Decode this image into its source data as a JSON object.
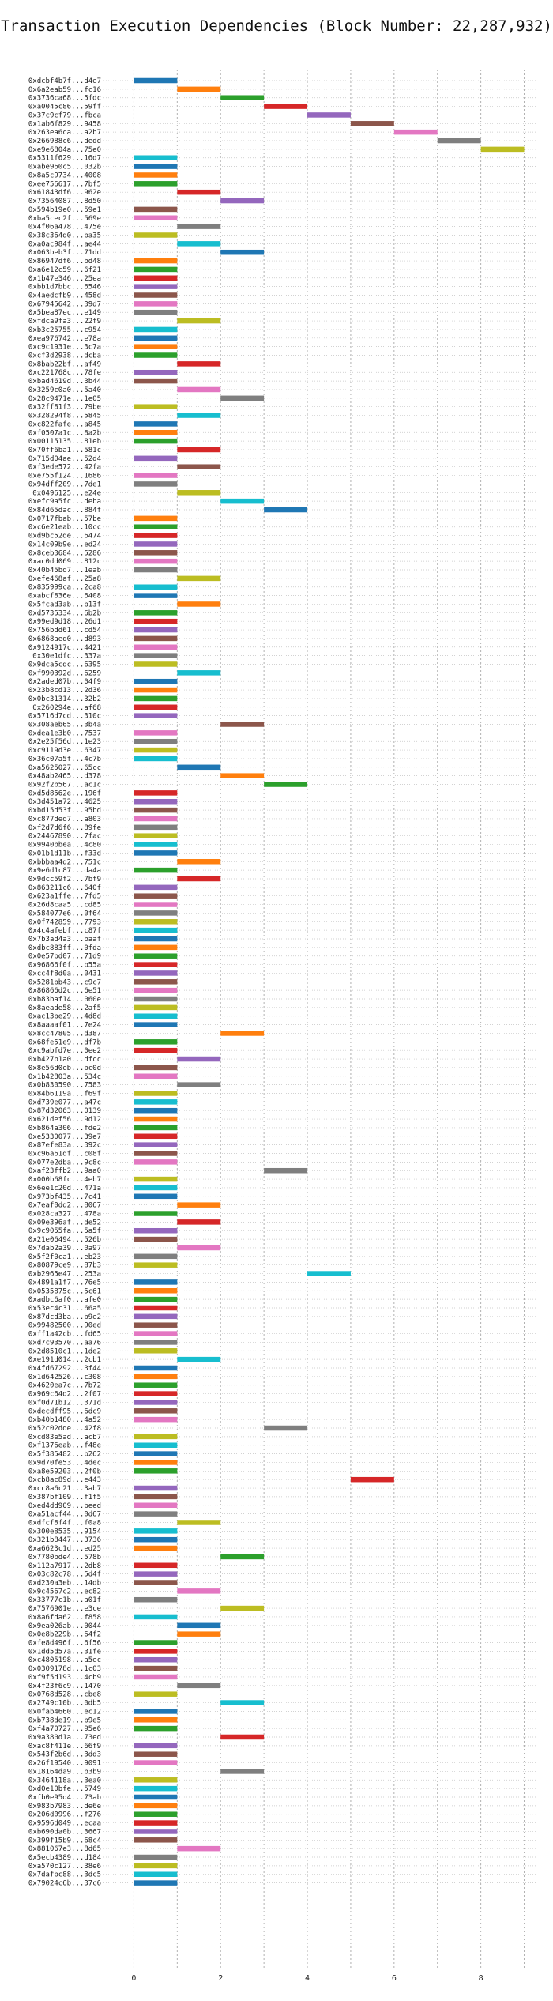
{
  "chart_data": {
    "type": "bar",
    "orientation": "horizontal",
    "title": "Transaction Execution Dependencies (Block Number: 22,287,932)",
    "xlabel": "",
    "ylabel": "",
    "xlim": [
      -0.7,
      9.3
    ],
    "xticks": [
      0,
      2,
      4,
      6,
      8
    ],
    "grid": true,
    "colors": [
      "#1f77b4",
      "#ff7f0e",
      "#2ca02c",
      "#d62728",
      "#9467bd",
      "#8c564b",
      "#e377c2",
      "#7f7f7f",
      "#bcbd22",
      "#17becf"
    ],
    "transactions": [
      {
        "label": "0xdcbf4b7f...d4e7",
        "start": 0,
        "end": 1
      },
      {
        "label": "0x6a2eab59...fc16",
        "start": 1,
        "end": 2
      },
      {
        "label": "0x3736ca68...5fdc",
        "start": 2,
        "end": 3
      },
      {
        "label": "0xa0045c86...59ff",
        "start": 3,
        "end": 4
      },
      {
        "label": "0x37c9cf79...fbca",
        "start": 4,
        "end": 5
      },
      {
        "label": "0x1ab6f829...9458",
        "start": 5,
        "end": 6
      },
      {
        "label": "0x263ea6ca...a2b7",
        "start": 6,
        "end": 7
      },
      {
        "label": "0x266988c6...dedd",
        "start": 7,
        "end": 8
      },
      {
        "label": "0xe9e6804a...75e0",
        "start": 8,
        "end": 9
      },
      {
        "label": "0x5311f629...16d7",
        "start": 0,
        "end": 1
      },
      {
        "label": "0xabe960c5...032b",
        "start": 0,
        "end": 1
      },
      {
        "label": "0x8a5c9734...4008",
        "start": 0,
        "end": 1
      },
      {
        "label": "0xee756617...7bf5",
        "start": 0,
        "end": 1
      },
      {
        "label": "0x61843df6...962e",
        "start": 1,
        "end": 2
      },
      {
        "label": "0x73564087...8d50",
        "start": 2,
        "end": 3
      },
      {
        "label": "0x594b19e0...59e1",
        "start": 0,
        "end": 1
      },
      {
        "label": "0xba5cec2f...569e",
        "start": 0,
        "end": 1
      },
      {
        "label": "0x4f06a478...475e",
        "start": 1,
        "end": 2
      },
      {
        "label": "0x38c364d0...ba35",
        "start": 0,
        "end": 1
      },
      {
        "label": "0xa0ac984f...ae44",
        "start": 1,
        "end": 2
      },
      {
        "label": "0x063beb3f...71dd",
        "start": 2,
        "end": 3
      },
      {
        "label": "0x86947df6...bd48",
        "start": 0,
        "end": 1
      },
      {
        "label": "0xa6e12c59...6f21",
        "start": 0,
        "end": 1
      },
      {
        "label": "0x1b47e346...25ea",
        "start": 0,
        "end": 1
      },
      {
        "label": "0xbb1d7bbc...6546",
        "start": 0,
        "end": 1
      },
      {
        "label": "0x4aedcfb9...458d",
        "start": 0,
        "end": 1
      },
      {
        "label": "0x67945642...39d7",
        "start": 0,
        "end": 1
      },
      {
        "label": "0x5bea87ec...e149",
        "start": 0,
        "end": 1
      },
      {
        "label": "0xfdca9fa3...22f9",
        "start": 1,
        "end": 2
      },
      {
        "label": "0xb3c25755...c954",
        "start": 0,
        "end": 1
      },
      {
        "label": "0xea976742...e78a",
        "start": 0,
        "end": 1
      },
      {
        "label": "0xc9c1931e...3c7a",
        "start": 0,
        "end": 1
      },
      {
        "label": "0xcf3d2938...dcba",
        "start": 0,
        "end": 1
      },
      {
        "label": "0x8bab22bf...af49",
        "start": 1,
        "end": 2
      },
      {
        "label": "0xc221768c...78fe",
        "start": 0,
        "end": 1
      },
      {
        "label": "0xbad4619d...3b44",
        "start": 0,
        "end": 1
      },
      {
        "label": "0x3259c0a0...5a40",
        "start": 1,
        "end": 2
      },
      {
        "label": "0x28c9471e...1e05",
        "start": 2,
        "end": 3
      },
      {
        "label": "0x32ff81f3...79be",
        "start": 0,
        "end": 1
      },
      {
        "label": "0x328294f8...5845",
        "start": 1,
        "end": 2
      },
      {
        "label": "0xc822fafe...a845",
        "start": 0,
        "end": 1
      },
      {
        "label": "0xf0507a1c...8a2b",
        "start": 0,
        "end": 1
      },
      {
        "label": "0x00115135...81eb",
        "start": 0,
        "end": 1
      },
      {
        "label": "0x70ff6ba1...581c",
        "start": 1,
        "end": 2
      },
      {
        "label": "0x715d04ae...52d4",
        "start": 0,
        "end": 1
      },
      {
        "label": "0xf3ede572...42fa",
        "start": 1,
        "end": 2
      },
      {
        "label": "0xe755f124...1686",
        "start": 0,
        "end": 1
      },
      {
        "label": "0x94dff209...7de1",
        "start": 0,
        "end": 1
      },
      {
        "label": "0x0496125...e24e",
        "start": 1,
        "end": 2
      },
      {
        "label": "0xefc9a5fc...deba",
        "start": 2,
        "end": 3
      },
      {
        "label": "0x84d65dac...884f",
        "start": 3,
        "end": 4
      },
      {
        "label": "0x0717fbab...57be",
        "start": 0,
        "end": 1
      },
      {
        "label": "0xc6e21eab...10cc",
        "start": 0,
        "end": 1
      },
      {
        "label": "0xd9bc52de...6474",
        "start": 0,
        "end": 1
      },
      {
        "label": "0x14c09b9e...ed24",
        "start": 0,
        "end": 1
      },
      {
        "label": "0x8ceb3684...5286",
        "start": 0,
        "end": 1
      },
      {
        "label": "0xac0dd069...812c",
        "start": 0,
        "end": 1
      },
      {
        "label": "0x40b45bd7...1eab",
        "start": 0,
        "end": 1
      },
      {
        "label": "0xefe468af...25a8",
        "start": 1,
        "end": 2
      },
      {
        "label": "0x835999ca...2ca8",
        "start": 0,
        "end": 1
      },
      {
        "label": "0xabcf836e...6408",
        "start": 0,
        "end": 1
      },
      {
        "label": "0x5fcad3ab...b13f",
        "start": 1,
        "end": 2
      },
      {
        "label": "0xd5735334...6b2b",
        "start": 0,
        "end": 1
      },
      {
        "label": "0x99ed9d18...26d1",
        "start": 0,
        "end": 1
      },
      {
        "label": "0x756bdd61...cd54",
        "start": 0,
        "end": 1
      },
      {
        "label": "0x6868aed0...d893",
        "start": 0,
        "end": 1
      },
      {
        "label": "0x9124917c...4421",
        "start": 0,
        "end": 1
      },
      {
        "label": "0x30e1dfc...337a",
        "start": 0,
        "end": 1
      },
      {
        "label": "0x9dca5cdc...6395",
        "start": 0,
        "end": 1
      },
      {
        "label": "0xf990392d...6259",
        "start": 1,
        "end": 2
      },
      {
        "label": "0x2aded07b...04f9",
        "start": 0,
        "end": 1
      },
      {
        "label": "0x23b8cd13...2d36",
        "start": 0,
        "end": 1
      },
      {
        "label": "0x0bc31314...32b2",
        "start": 0,
        "end": 1
      },
      {
        "label": "0x260294e...af68",
        "start": 0,
        "end": 1
      },
      {
        "label": "0x5716d7cd...310c",
        "start": 0,
        "end": 1
      },
      {
        "label": "0x308aeb65...3b4a",
        "start": 2,
        "end": 3
      },
      {
        "label": "0xdea1e3b0...7537",
        "start": 0,
        "end": 1
      },
      {
        "label": "0x2e25f56d...1e23",
        "start": 0,
        "end": 1
      },
      {
        "label": "0xc9119d3e...6347",
        "start": 0,
        "end": 1
      },
      {
        "label": "0x36c07a5f...4c7b",
        "start": 0,
        "end": 1
      },
      {
        "label": "0xa5625027...65cc",
        "start": 1,
        "end": 2
      },
      {
        "label": "0x48ab2465...d378",
        "start": 2,
        "end": 3
      },
      {
        "label": "0x92f2b567...ac1c",
        "start": 3,
        "end": 4
      },
      {
        "label": "0xd5d8562e...196f",
        "start": 0,
        "end": 1
      },
      {
        "label": "0x3d451a72...4625",
        "start": 0,
        "end": 1
      },
      {
        "label": "0xbd15d53f...95bd",
        "start": 0,
        "end": 1
      },
      {
        "label": "0xc877ded7...a803",
        "start": 0,
        "end": 1
      },
      {
        "label": "0xf2d7d6f6...89fe",
        "start": 0,
        "end": 1
      },
      {
        "label": "0x24467890...7fac",
        "start": 0,
        "end": 1
      },
      {
        "label": "0x9940bbea...4c80",
        "start": 0,
        "end": 1
      },
      {
        "label": "0x01b1d11b...f33d",
        "start": 0,
        "end": 1
      },
      {
        "label": "0xbbbaa4d2...751c",
        "start": 1,
        "end": 2
      },
      {
        "label": "0x9e6d1c87...da4a",
        "start": 0,
        "end": 1
      },
      {
        "label": "0x9dcc59f2...7bf9",
        "start": 1,
        "end": 2
      },
      {
        "label": "0x863211c6...640f",
        "start": 0,
        "end": 1
      },
      {
        "label": "0x623a1ffe...7fd5",
        "start": 0,
        "end": 1
      },
      {
        "label": "0x26d8caa5...cd85",
        "start": 0,
        "end": 1
      },
      {
        "label": "0x584077e6...0f64",
        "start": 0,
        "end": 1
      },
      {
        "label": "0x0f742859...7793",
        "start": 0,
        "end": 1
      },
      {
        "label": "0x4c4afebf...c87f",
        "start": 0,
        "end": 1
      },
      {
        "label": "0x7b3ad4a3...baaf",
        "start": 0,
        "end": 1
      },
      {
        "label": "0xdbc883ff...0fda",
        "start": 0,
        "end": 1
      },
      {
        "label": "0x0e57bd07...71d9",
        "start": 0,
        "end": 1
      },
      {
        "label": "0x96866f0f...b55a",
        "start": 0,
        "end": 1
      },
      {
        "label": "0xcc4f8d0a...0431",
        "start": 0,
        "end": 1
      },
      {
        "label": "0x5281bb43...c9c7",
        "start": 0,
        "end": 1
      },
      {
        "label": "0x86866d2c...6e51",
        "start": 0,
        "end": 1
      },
      {
        "label": "0xb83baf14...060e",
        "start": 0,
        "end": 1
      },
      {
        "label": "0x8aeade58...2af5",
        "start": 0,
        "end": 1
      },
      {
        "label": "0xac13be29...4d8d",
        "start": 0,
        "end": 1
      },
      {
        "label": "0x8aaaaf01...7e24",
        "start": 0,
        "end": 1
      },
      {
        "label": "0x8cc47805...d387",
        "start": 2,
        "end": 3
      },
      {
        "label": "0x68fe51e9...df7b",
        "start": 0,
        "end": 1
      },
      {
        "label": "0xc9abfd7e...0ee2",
        "start": 0,
        "end": 1
      },
      {
        "label": "0xb427b1a0...dfcc",
        "start": 1,
        "end": 2
      },
      {
        "label": "0x8e56d0eb...bc0d",
        "start": 0,
        "end": 1
      },
      {
        "label": "0x1b42803a...534c",
        "start": 0,
        "end": 1
      },
      {
        "label": "0x0b830590...7583",
        "start": 1,
        "end": 2
      },
      {
        "label": "0x84b6119a...f69f",
        "start": 0,
        "end": 1
      },
      {
        "label": "0xd739e077...a47c",
        "start": 0,
        "end": 1
      },
      {
        "label": "0x87d32063...0139",
        "start": 0,
        "end": 1
      },
      {
        "label": "0x621def56...9d12",
        "start": 0,
        "end": 1
      },
      {
        "label": "0xb864a306...fde2",
        "start": 0,
        "end": 1
      },
      {
        "label": "0xe5330077...39e7",
        "start": 0,
        "end": 1
      },
      {
        "label": "0x87efe83a...392c",
        "start": 0,
        "end": 1
      },
      {
        "label": "0xc96a61df...c08f",
        "start": 0,
        "end": 1
      },
      {
        "label": "0x077e2dba...9c8c",
        "start": 0,
        "end": 1
      },
      {
        "label": "0xaf23ffb2...9aa0",
        "start": 3,
        "end": 4
      },
      {
        "label": "0x000b68fc...4eb7",
        "start": 0,
        "end": 1
      },
      {
        "label": "0x6ee1c20d...471a",
        "start": 0,
        "end": 1
      },
      {
        "label": "0x973bf435...7c41",
        "start": 0,
        "end": 1
      },
      {
        "label": "0x7eaf0dd2...8067",
        "start": 1,
        "end": 2
      },
      {
        "label": "0x028ca327...478a",
        "start": 0,
        "end": 1
      },
      {
        "label": "0x09e396af...de52",
        "start": 1,
        "end": 2
      },
      {
        "label": "0x9c9055fa...5a5f",
        "start": 0,
        "end": 1
      },
      {
        "label": "0x21e06494...526b",
        "start": 0,
        "end": 1
      },
      {
        "label": "0x7dab2a39...0a97",
        "start": 1,
        "end": 2
      },
      {
        "label": "0x5f2f0ca1...eb23",
        "start": 0,
        "end": 1
      },
      {
        "label": "0x80879ce9...87b3",
        "start": 0,
        "end": 1
      },
      {
        "label": "0xb2965e47...253a",
        "start": 4,
        "end": 5
      },
      {
        "label": "0x4891a1f7...76e5",
        "start": 0,
        "end": 1
      },
      {
        "label": "0x0535875c...5c61",
        "start": 0,
        "end": 1
      },
      {
        "label": "0xadbc6af0...afe0",
        "start": 0,
        "end": 1
      },
      {
        "label": "0x53ec4c31...66a5",
        "start": 0,
        "end": 1
      },
      {
        "label": "0x87dcd3ba...b9e2",
        "start": 0,
        "end": 1
      },
      {
        "label": "0x99482500...90ed",
        "start": 0,
        "end": 1
      },
      {
        "label": "0xff1a42cb...fd65",
        "start": 0,
        "end": 1
      },
      {
        "label": "0xd7c93570...aa76",
        "start": 0,
        "end": 1
      },
      {
        "label": "0x2d8510c1...1de2",
        "start": 0,
        "end": 1
      },
      {
        "label": "0xe191d014...2cb1",
        "start": 1,
        "end": 2
      },
      {
        "label": "0x4fd67292...3f44",
        "start": 0,
        "end": 1
      },
      {
        "label": "0x1d642526...c308",
        "start": 0,
        "end": 1
      },
      {
        "label": "0x4620ea7c...7b72",
        "start": 0,
        "end": 1
      },
      {
        "label": "0x969c64d2...2f07",
        "start": 0,
        "end": 1
      },
      {
        "label": "0xf0d71b12...371d",
        "start": 0,
        "end": 1
      },
      {
        "label": "0xdecdff95...6dc9",
        "start": 0,
        "end": 1
      },
      {
        "label": "0xb40b1480...4a52",
        "start": 0,
        "end": 1
      },
      {
        "label": "0x52c02dde...42f8",
        "start": 3,
        "end": 4
      },
      {
        "label": "0xcd83e5ad...acb7",
        "start": 0,
        "end": 1
      },
      {
        "label": "0xf1376eab...f48e",
        "start": 0,
        "end": 1
      },
      {
        "label": "0x5f385482...b262",
        "start": 0,
        "end": 1
      },
      {
        "label": "0x9d70fe53...4dec",
        "start": 0,
        "end": 1
      },
      {
        "label": "0xa8e59203...2f0b",
        "start": 0,
        "end": 1
      },
      {
        "label": "0xcb8ac89d...e443",
        "start": 5,
        "end": 6
      },
      {
        "label": "0xcc8a6c21...3ab7",
        "start": 0,
        "end": 1
      },
      {
        "label": "0x387bf109...f1f5",
        "start": 0,
        "end": 1
      },
      {
        "label": "0xed4dd909...beed",
        "start": 0,
        "end": 1
      },
      {
        "label": "0xa51acf44...0d67",
        "start": 0,
        "end": 1
      },
      {
        "label": "0xdfcf8f4f...f0a8",
        "start": 1,
        "end": 2
      },
      {
        "label": "0x300e8535...9154",
        "start": 0,
        "end": 1
      },
      {
        "label": "0x321b8447...3736",
        "start": 0,
        "end": 1
      },
      {
        "label": "0xa6623c1d...ed25",
        "start": 0,
        "end": 1
      },
      {
        "label": "0x7780bde4...578b",
        "start": 2,
        "end": 3
      },
      {
        "label": "0x112a7917...2db8",
        "start": 0,
        "end": 1
      },
      {
        "label": "0x03c82c78...5d4f",
        "start": 0,
        "end": 1
      },
      {
        "label": "0xd230a3eb...14db",
        "start": 0,
        "end": 1
      },
      {
        "label": "0x9c4567c2...ec82",
        "start": 1,
        "end": 2
      },
      {
        "label": "0x33777c1b...a01f",
        "start": 0,
        "end": 1
      },
      {
        "label": "0x7576901e...e3ce",
        "start": 2,
        "end": 3
      },
      {
        "label": "0x8a6fda62...f858",
        "start": 0,
        "end": 1
      },
      {
        "label": "0x9ea026ab...0044",
        "start": 1,
        "end": 2
      },
      {
        "label": "0x0e8b229b...64f2",
        "start": 1,
        "end": 2
      },
      {
        "label": "0xfe8d496f...6f56",
        "start": 0,
        "end": 1
      },
      {
        "label": "0x1dd5d57a...31fe",
        "start": 0,
        "end": 1
      },
      {
        "label": "0xc4805198...a5ec",
        "start": 0,
        "end": 1
      },
      {
        "label": "0x0309178d...1c03",
        "start": 0,
        "end": 1
      },
      {
        "label": "0xf9f5d193...4cb9",
        "start": 0,
        "end": 1
      },
      {
        "label": "0x4f23f6c9...1470",
        "start": 1,
        "end": 2
      },
      {
        "label": "0x0768d528...cbe8",
        "start": 0,
        "end": 1
      },
      {
        "label": "0x2749c10b...0db5",
        "start": 2,
        "end": 3
      },
      {
        "label": "0x0fab4660...ec12",
        "start": 0,
        "end": 1
      },
      {
        "label": "0xb738de19...b9e5",
        "start": 0,
        "end": 1
      },
      {
        "label": "0xf4a70727...95e6",
        "start": 0,
        "end": 1
      },
      {
        "label": "0x9a380d1a...73ed",
        "start": 2,
        "end": 3
      },
      {
        "label": "0xac8f411e...66f9",
        "start": 0,
        "end": 1
      },
      {
        "label": "0x543f2b6d...3dd3",
        "start": 0,
        "end": 1
      },
      {
        "label": "0x26f19540...9091",
        "start": 0,
        "end": 1
      },
      {
        "label": "0x18164da9...b3b9",
        "start": 2,
        "end": 3
      },
      {
        "label": "0x3464118a...3ea0",
        "start": 0,
        "end": 1
      },
      {
        "label": "0xd0e10bfe...5749",
        "start": 0,
        "end": 1
      },
      {
        "label": "0xfb0e95d4...73ab",
        "start": 0,
        "end": 1
      },
      {
        "label": "0x983b7983...de6e",
        "start": 0,
        "end": 1
      },
      {
        "label": "0x206d0996...f276",
        "start": 0,
        "end": 1
      },
      {
        "label": "0x9596d049...ecaa",
        "start": 0,
        "end": 1
      },
      {
        "label": "0xb690da0b...3667",
        "start": 0,
        "end": 1
      },
      {
        "label": "0x399f15b9...68c4",
        "start": 0,
        "end": 1
      },
      {
        "label": "0x881067e3...8d65",
        "start": 1,
        "end": 2
      },
      {
        "label": "0x5ecb4389...d184",
        "start": 0,
        "end": 1
      },
      {
        "label": "0xa570c127...38e6",
        "start": 0,
        "end": 1
      },
      {
        "label": "0x7dafbc88...3dc5",
        "start": 0,
        "end": 1
      },
      {
        "label": "0x79024c6b...37c6",
        "start": 0,
        "end": 1
      }
    ]
  }
}
